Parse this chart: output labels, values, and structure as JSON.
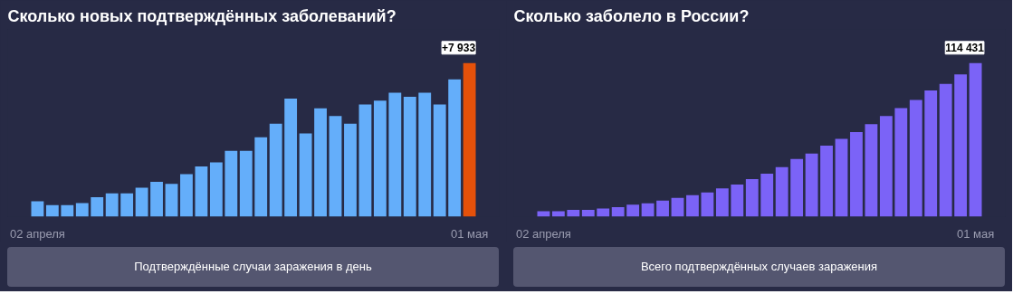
{
  "chart_data": [
    {
      "type": "bar",
      "title": "Сколько новых подтверждённых заболеваний?",
      "categories": [
        "02 апреля",
        null,
        null,
        null,
        null,
        null,
        null,
        null,
        null,
        null,
        null,
        null,
        null,
        null,
        null,
        null,
        null,
        null,
        null,
        null,
        null,
        null,
        null,
        null,
        null,
        null,
        null,
        null,
        null,
        "01 мая"
      ],
      "values": [
        800,
        600,
        600,
        700,
        1000,
        1200,
        1200,
        1500,
        1800,
        1700,
        2200,
        2600,
        2800,
        3400,
        3400,
        4100,
        4800,
        6100,
        4300,
        5600,
        5200,
        4800,
        5800,
        6000,
        6400,
        6200,
        6400,
        5800,
        7100,
        7933
      ],
      "colors": [
        "#64aefa",
        "#64aefa",
        "#64aefa",
        "#64aefa",
        "#64aefa",
        "#64aefa",
        "#64aefa",
        "#64aefa",
        "#64aefa",
        "#64aefa",
        "#64aefa",
        "#64aefa",
        "#64aefa",
        "#64aefa",
        "#64aefa",
        "#64aefa",
        "#64aefa",
        "#64aefa",
        "#64aefa",
        "#64aefa",
        "#64aefa",
        "#64aefa",
        "#64aefa",
        "#64aefa",
        "#64aefa",
        "#64aefa",
        "#64aefa",
        "#64aefa",
        "#64aefa",
        "#e5510a"
      ],
      "value_labels": [
        null,
        null,
        null,
        null,
        null,
        null,
        null,
        null,
        null,
        null,
        null,
        null,
        null,
        null,
        null,
        null,
        null,
        null,
        null,
        null,
        null,
        null,
        null,
        null,
        null,
        null,
        null,
        null,
        null,
        "+7 933"
      ],
      "annotations": [
        "Подтверждённые случаи заражения в день"
      ]
    },
    {
      "type": "bar",
      "title": "Сколько заболело в России?",
      "categories": [
        "02 апреля",
        null,
        null,
        null,
        null,
        null,
        null,
        null,
        null,
        null,
        null,
        null,
        null,
        null,
        null,
        null,
        null,
        null,
        null,
        null,
        null,
        null,
        null,
        null,
        null,
        null,
        null,
        null,
        null,
        "01 мая"
      ],
      "values": [
        4000,
        4000,
        5000,
        5000,
        6000,
        7000,
        9000,
        10000,
        12000,
        14000,
        16000,
        18000,
        21000,
        24000,
        28000,
        32000,
        37000,
        43000,
        47000,
        53000,
        58000,
        63000,
        69000,
        75000,
        81000,
        87000,
        94000,
        99000,
        106000,
        114431
      ],
      "color": "#7b63f7",
      "value_labels": [
        null,
        null,
        null,
        null,
        null,
        null,
        null,
        null,
        null,
        null,
        null,
        null,
        null,
        null,
        null,
        null,
        null,
        null,
        null,
        null,
        null,
        null,
        null,
        null,
        null,
        null,
        null,
        null,
        null,
        "114 431"
      ],
      "annotations": [
        "Всего подтверждённых случаев заражения"
      ]
    }
  ]
}
